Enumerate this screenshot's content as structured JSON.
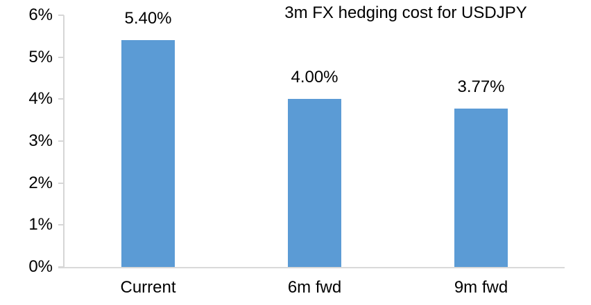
{
  "chart_data": {
    "type": "bar",
    "title": "3m FX hedging cost for USDJPY",
    "categories": [
      "Current",
      "6m fwd",
      "9m fwd"
    ],
    "values": [
      5.4,
      4.0,
      3.77
    ],
    "data_labels": [
      "5.40%",
      "4.00%",
      "3.77%"
    ],
    "xlabel": "",
    "ylabel": "",
    "ylim": [
      0,
      6
    ],
    "ytick_step": 1,
    "ytick_labels": [
      "0%",
      "1%",
      "2%",
      "3%",
      "4%",
      "5%",
      "6%"
    ],
    "grid": false,
    "legend_position": "none",
    "bar_color": "#5b9bd5",
    "axis_color": "#d9d9d9",
    "text_color": "#000000"
  }
}
